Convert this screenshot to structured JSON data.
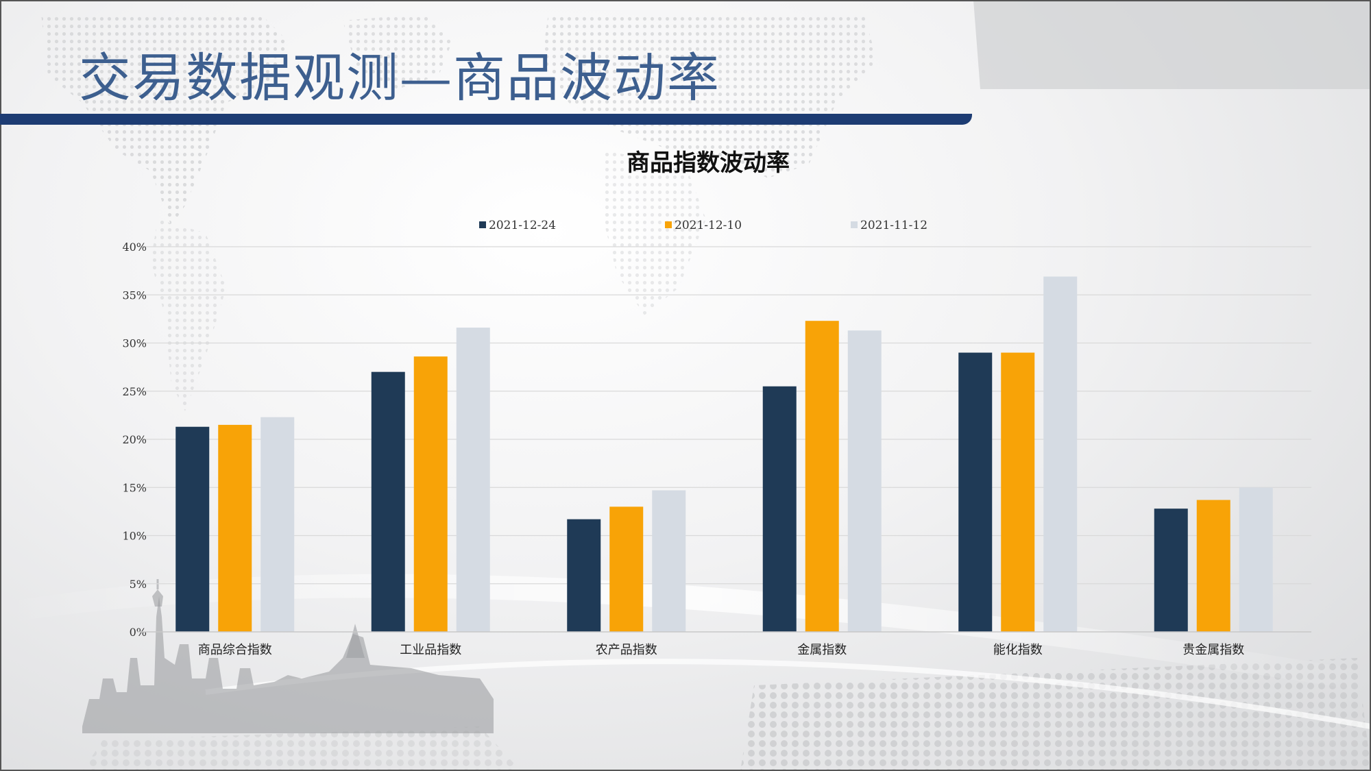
{
  "slide": {
    "title": "交易数据观测—商品波动率"
  },
  "chart_data": {
    "type": "bar",
    "title": "商品指数波动率",
    "xlabel": "",
    "ylabel": "",
    "ylim": [
      0,
      40
    ],
    "yticks": [
      "0%",
      "5%",
      "10%",
      "15%",
      "20%",
      "25%",
      "30%",
      "35%",
      "40%"
    ],
    "grid": true,
    "legend_position": "top",
    "categories": [
      "商品综合指数",
      "工业品指数",
      "农产品指数",
      "金属指数",
      "能化指数",
      "贵金属指数"
    ],
    "series": [
      {
        "name": "2021-12-24",
        "color": "#1f3a56",
        "values": [
          21.3,
          27.0,
          11.7,
          25.5,
          29.0,
          12.8
        ]
      },
      {
        "name": "2021-12-10",
        "color": "#f8a307",
        "values": [
          21.5,
          28.6,
          13.0,
          32.3,
          29.0,
          13.7
        ]
      },
      {
        "name": "2021-11-12",
        "color": "#d5dbe3",
        "values": [
          22.3,
          31.6,
          14.7,
          31.3,
          36.9,
          15.0
        ]
      }
    ]
  }
}
